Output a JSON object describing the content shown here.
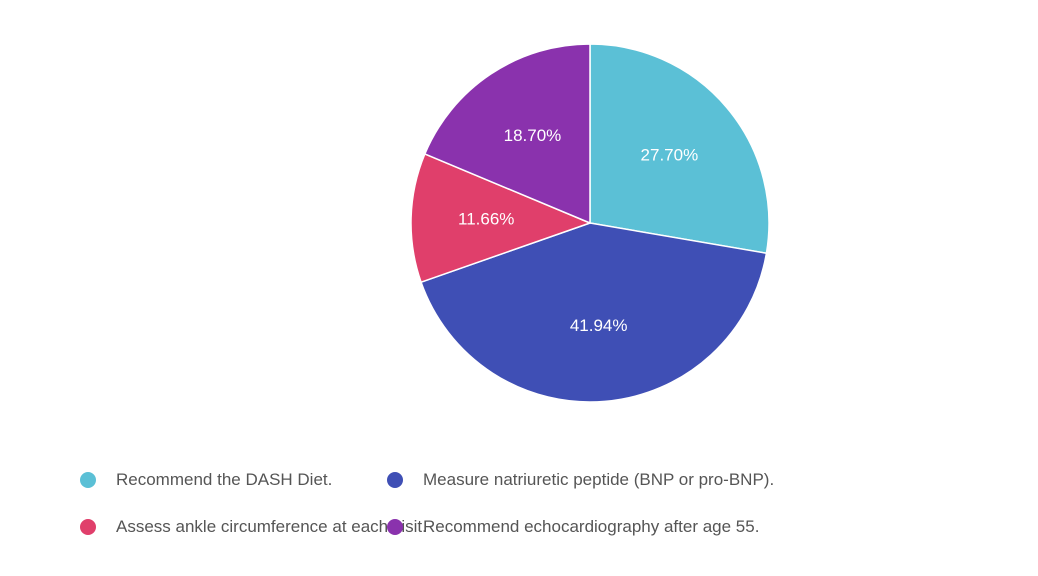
{
  "chart_data": {
    "type": "pie",
    "categories": [
      "Recommend the DASH Diet.",
      "Measure natriuretic peptide (BNP or pro-BNP).",
      "Assess ankle circumference at each visit.",
      "Recommend echocardiography after age 55."
    ],
    "values": [
      27.7,
      41.94,
      11.66,
      18.7
    ],
    "data_labels": [
      "27.70%",
      "41.94%",
      "11.66%",
      "18.70%"
    ],
    "colors": [
      "#5bc0d6",
      "#3f4fb5",
      "#e03f6b",
      "#8a32ad"
    ],
    "start_angle_deg": 0,
    "direction": "clockwise",
    "legend_position": "bottom"
  }
}
